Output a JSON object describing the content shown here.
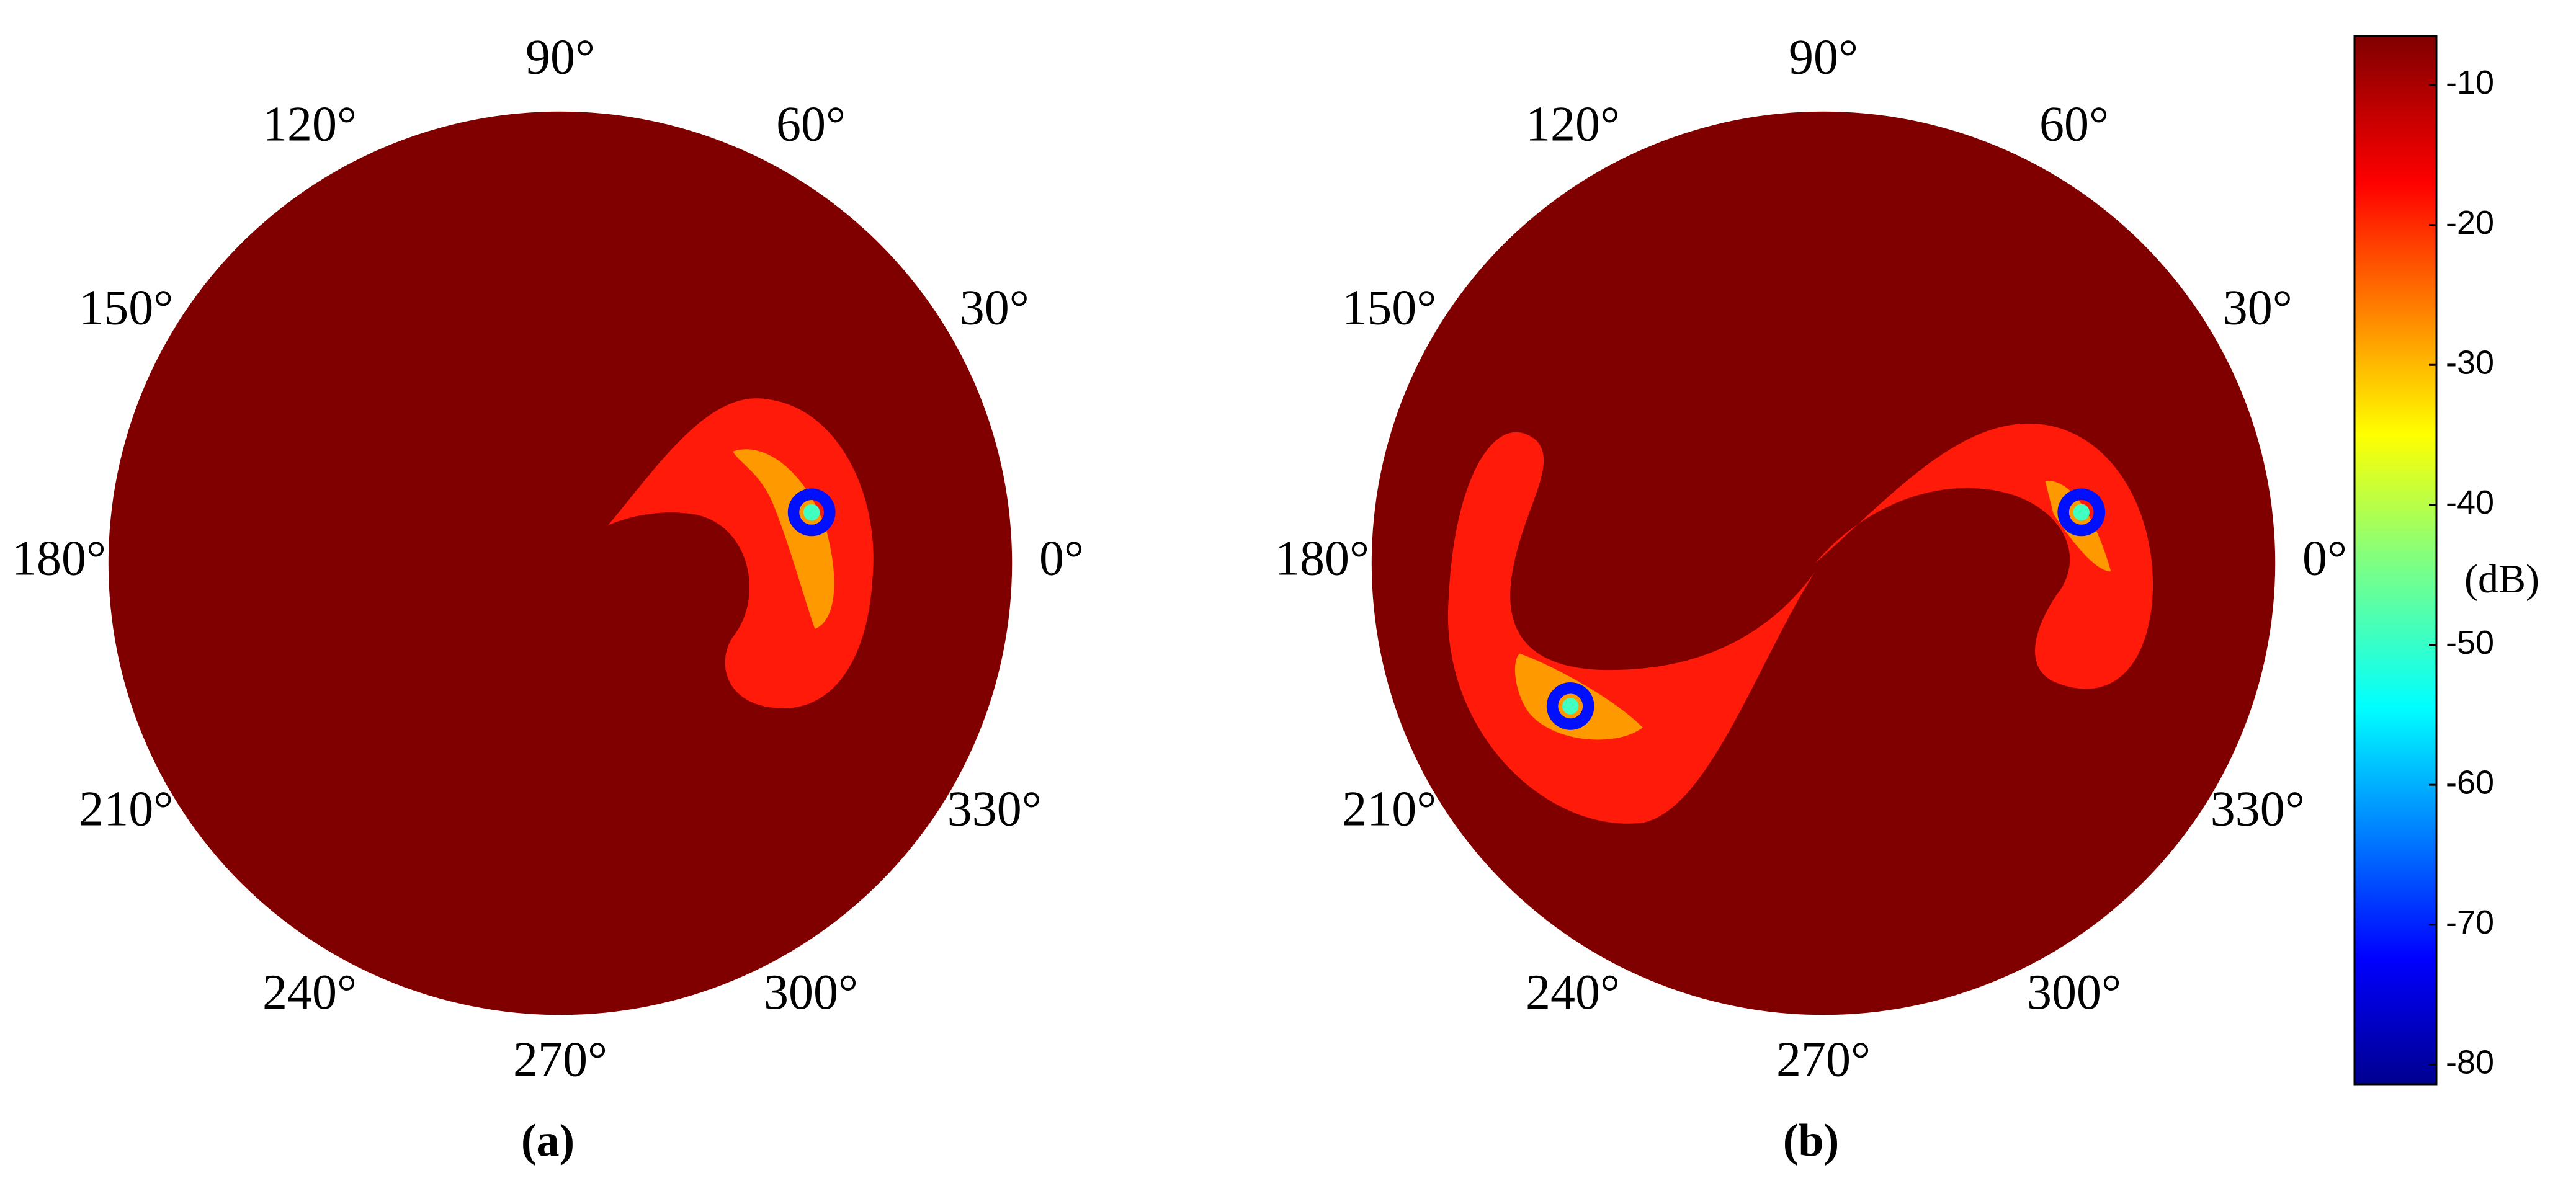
{
  "chart_data": [
    {
      "type": "polar",
      "label": "(a)",
      "angle_ticks": [
        {
          "value": 0,
          "label": "0°"
        },
        {
          "value": 30,
          "label": "30°"
        },
        {
          "value": 60,
          "label": "60°"
        },
        {
          "value": 90,
          "label": "90°"
        },
        {
          "value": 120,
          "label": "120°"
        },
        {
          "value": 150,
          "label": "150°"
        },
        {
          "value": 180,
          "label": "180°"
        },
        {
          "value": 210,
          "label": "210°"
        },
        {
          "value": 240,
          "label": "240°"
        },
        {
          "value": 270,
          "label": "270°"
        },
        {
          "value": 300,
          "label": "300°"
        },
        {
          "value": 330,
          "label": "330°"
        }
      ]
    },
    {
      "type": "polar",
      "label": "(b)",
      "angle_ticks": [
        {
          "value": 0,
          "label": "0°"
        },
        {
          "value": 30,
          "label": "30°"
        },
        {
          "value": 60,
          "label": "60°"
        },
        {
          "value": 90,
          "label": "90°"
        },
        {
          "value": 120,
          "label": "120°"
        },
        {
          "value": 150,
          "label": "150°"
        },
        {
          "value": 180,
          "label": "180°"
        },
        {
          "value": 210,
          "label": "210°"
        },
        {
          "value": 240,
          "label": "240°"
        },
        {
          "value": 270,
          "label": "270°"
        },
        {
          "value": 300,
          "label": "300°"
        },
        {
          "value": 330,
          "label": "330°"
        }
      ]
    }
  ],
  "colorbar": {
    "label": "(dB)",
    "clim": [
      -81.4,
      -6.5
    ],
    "ticks": [
      -10,
      -20,
      -30,
      -40,
      -50,
      -60,
      -70,
      -80
    ]
  }
}
